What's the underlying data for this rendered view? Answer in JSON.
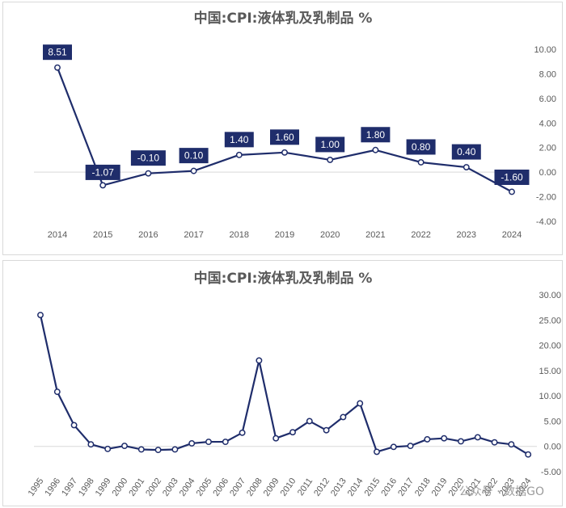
{
  "colors": {
    "line": "#1f2d6b",
    "label_bg": "#1f2d6b",
    "axis": "#d9d9d9",
    "text": "#595959"
  },
  "watermark": "公众号 · 数据GO",
  "chart_data": [
    {
      "type": "line",
      "title": "中国:CPI:液体乳及乳制品 %",
      "x": [
        "2014",
        "2015",
        "2016",
        "2017",
        "2018",
        "2019",
        "2020",
        "2021",
        "2022",
        "2023",
        "2024"
      ],
      "series": [
        {
          "values": [
            8.51,
            -1.07,
            -0.1,
            0.1,
            1.4,
            1.6,
            1.0,
            1.8,
            0.8,
            0.4,
            -1.6
          ]
        }
      ],
      "data_labels": [
        "8.51",
        "-1.07",
        "-0.10",
        "0.10",
        "1.40",
        "1.60",
        "1.00",
        "1.80",
        "0.80",
        "0.40",
        "-1.60"
      ],
      "ylim": [
        -4,
        10
      ],
      "yticks": [
        "10.00",
        "8.00",
        "6.00",
        "4.00",
        "2.00",
        "0.00",
        "-2.00",
        "-4.00"
      ],
      "y_axis_position": "right",
      "grid": false,
      "markers": "hollow-circle"
    },
    {
      "type": "line",
      "title": "中国:CPI:液体乳及乳制品 %",
      "x": [
        "1995",
        "1996",
        "1997",
        "1998",
        "1999",
        "2000",
        "2001",
        "2002",
        "2003",
        "2004",
        "2005",
        "2006",
        "2007",
        "2008",
        "2009",
        "2010",
        "2011",
        "2012",
        "2013",
        "2014",
        "2015",
        "2016",
        "2017",
        "2018",
        "2019",
        "2020",
        "2021",
        "2022",
        "2023",
        "2024"
      ],
      "series": [
        {
          "values": [
            26.0,
            10.8,
            4.2,
            0.4,
            -0.5,
            0.1,
            -0.6,
            -0.7,
            -0.6,
            0.6,
            0.9,
            0.9,
            2.7,
            17.0,
            1.6,
            2.8,
            5.0,
            3.2,
            5.8,
            8.51,
            -1.07,
            -0.1,
            0.1,
            1.4,
            1.6,
            1.0,
            1.8,
            0.8,
            0.4,
            -1.6
          ]
        }
      ],
      "ylim": [
        -5,
        30
      ],
      "yticks": [
        "30.00",
        "25.00",
        "20.00",
        "15.00",
        "10.00",
        "5.00",
        "0.00",
        "-5.00"
      ],
      "y_axis_position": "right",
      "grid": false,
      "markers": "hollow-circle"
    }
  ]
}
